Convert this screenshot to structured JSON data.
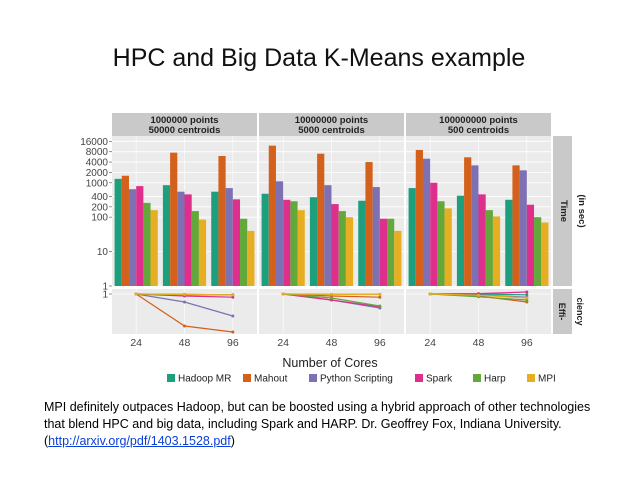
{
  "slide": {
    "title": "HPC and Big Data K-Means example",
    "caption_text": "MPI definitely outpaces Hadoop, but can be boosted using a hybrid approach of other technologies that blend HPC and big data, including Spark and HARP. Dr. Geoffrey Fox, Indiana University. (",
    "caption_link": "http://arxiv.org/pdf/1403.1528.pdf",
    "caption_end": ")"
  },
  "colors": {
    "Hadoop MR": "#1d9e7d",
    "Mahout": "#d3611b",
    "Python Scripting": "#7d71b3",
    "Spark": "#dd2f8b",
    "Harp": "#62a83a",
    "MPI": "#e6ae20"
  },
  "chart_data": {
    "type": "bar",
    "xlabel": "Number of Cores",
    "panels": [
      {
        "line1": "1000000 points",
        "line2": "50000 centroids"
      },
      {
        "line1": "10000000 points",
        "line2": "5000 centroids"
      },
      {
        "line1": "100000000 points",
        "line2": "500 centroids"
      }
    ],
    "categories": [
      "24",
      "48",
      "96"
    ],
    "series_names": [
      "Hadoop MR",
      "Mahout",
      "Python Scripting",
      "Spark",
      "Harp",
      "MPI"
    ],
    "time": {
      "strip_line1": "Time",
      "strip_line2": "(in sec)",
      "scale": "log",
      "ylim": [
        1,
        20000
      ],
      "yticks": [
        1,
        10,
        100,
        200,
        400,
        1000,
        2000,
        4000,
        8000,
        16000
      ],
      "panels": [
        [
          [
            1300,
            1600,
            650,
            800,
            260,
            160
          ],
          [
            850,
            7500,
            550,
            460,
            150,
            85
          ],
          [
            550,
            6000,
            700,
            330,
            90,
            40
          ]
        ],
        [
          [
            480,
            12000,
            1100,
            320,
            290,
            160
          ],
          [
            380,
            7000,
            850,
            240,
            150,
            100
          ],
          [
            300,
            4000,
            750,
            90,
            90,
            40
          ]
        ],
        [
          [
            700,
            9000,
            5000,
            1000,
            290,
            180
          ],
          [
            420,
            5500,
            3200,
            460,
            160,
            105
          ],
          [
            320,
            3200,
            2300,
            230,
            100,
            70
          ]
        ]
      ]
    },
    "efficiency": {
      "strip_line1": "Effi-",
      "strip_line2": "ciency",
      "ylim": [
        0,
        1.05
      ],
      "yticks": [
        1
      ],
      "panels": [
        [
          [
            1,
            0.99,
            0.98
          ],
          [
            1,
            0.2,
            0.05
          ],
          [
            1,
            0.8,
            0.45
          ],
          [
            1,
            0.95,
            0.92
          ],
          [
            1,
            0.98,
            0.98
          ],
          [
            1,
            0.99,
            0.98
          ]
        ],
        [
          [
            1,
            0.99,
            0.99
          ],
          [
            1,
            0.95,
            0.92
          ],
          [
            1,
            0.85,
            0.65
          ],
          [
            1,
            0.85,
            0.68
          ],
          [
            1,
            0.9,
            0.7
          ],
          [
            1,
            0.99,
            0.99
          ]
        ],
        [
          [
            1,
            1.0,
            0.98
          ],
          [
            1,
            0.95,
            0.8
          ],
          [
            1,
            0.98,
            0.92
          ],
          [
            1,
            1.01,
            1.05
          ],
          [
            1,
            0.93,
            0.85
          ],
          [
            1,
            0.97,
            0.9
          ]
        ]
      ]
    },
    "legend": {
      "position": "bottom"
    }
  }
}
